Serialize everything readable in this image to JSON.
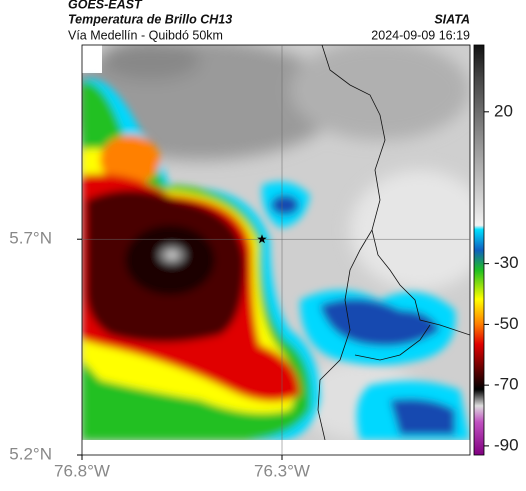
{
  "header": {
    "source": "GOES-EAST",
    "title": "Temperatura de Brillo CH13",
    "subtitle": "Vía Medellín - Quibdó 50km",
    "org": "SIATA",
    "datetime": "2024-09-09 16:19"
  },
  "map": {
    "lonlim": [
      -76.8,
      -75.83
    ],
    "latlim": [
      5.2,
      6.15
    ],
    "lonticks": [
      {
        "value": -76.8,
        "label": "76.8°W"
      },
      {
        "value": -76.3,
        "label": "76.3°W"
      }
    ],
    "latticks": [
      {
        "value": 5.7,
        "label": "5.7°N"
      },
      {
        "value": 5.2,
        "label": "5.2°N"
      }
    ],
    "grid": true,
    "marker": {
      "lon": -76.35,
      "lat": 5.7
    }
  },
  "colorbar": {
    "lim": [
      42,
      -93
    ],
    "ticks": [
      20,
      -30,
      -50,
      -70,
      -90
    ]
  }
}
